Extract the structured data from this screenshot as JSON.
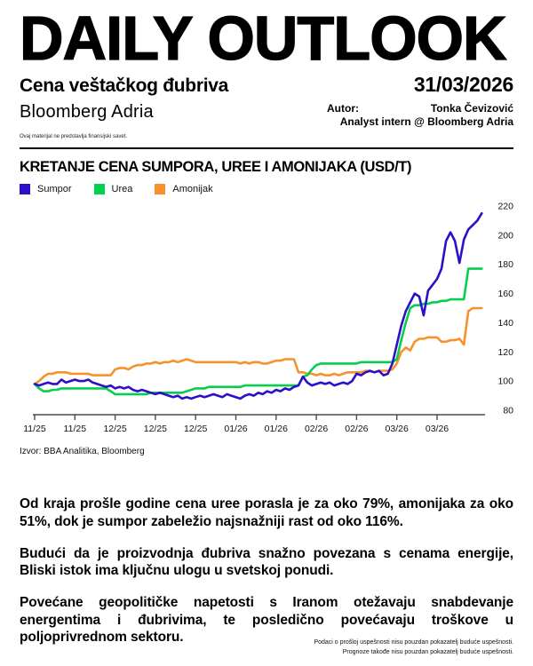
{
  "header": {
    "title": "DAILY OUTLOOK",
    "subtitle": "Cena veštačkog đubriva",
    "date": "31/03/2026",
    "brand": "Bloomberg Adria",
    "author_label": "Autor:",
    "author_name": "Tonka Čevizović",
    "author_role": "Analyst intern @ Bloomberg Adria",
    "disclaimer": "Ovaj materijal ne predstavlja finansijski savet."
  },
  "chart": {
    "title": "KRETANJE CENA SUMPORA, UREE I AMONIJAKA (USD/T)",
    "source": "Izvor: BBA Analitika, Bloomberg"
  },
  "chart_data": {
    "type": "line",
    "title": "KRETANJE CENA SUMPORA, UREE I AMONIJAKA (USD/T)",
    "xlabel": "",
    "ylabel": "USD/T",
    "grid": false,
    "legend_position": "top-left",
    "ylim": [
      80,
      220
    ],
    "y_ticks": [
      80,
      100,
      120,
      140,
      160,
      180,
      200,
      220
    ],
    "x_tick_labels": [
      "11/25",
      "11/25",
      "12/25",
      "12/25",
      "12/25",
      "01/26",
      "01/26",
      "02/26",
      "02/26",
      "03/26",
      "03/26"
    ],
    "x_tick_index_step": 9,
    "series": [
      {
        "name": "Sumpor",
        "color": "#2D0FC7",
        "values": [
          98,
          97,
          98,
          99,
          98,
          98,
          101,
          99,
          100,
          101,
          100,
          100,
          101,
          99,
          98,
          97,
          96,
          97,
          95,
          96,
          95,
          96,
          94,
          93,
          94,
          93,
          92,
          91,
          92,
          91,
          90,
          89,
          90,
          88,
          89,
          88,
          89,
          90,
          89,
          90,
          91,
          90,
          89,
          91,
          90,
          89,
          88,
          90,
          91,
          90,
          92,
          91,
          93,
          92,
          94,
          93,
          95,
          94,
          96,
          97,
          103,
          99,
          97,
          98,
          99,
          98,
          99,
          97,
          98,
          99,
          98,
          100,
          105,
          104,
          106,
          107,
          106,
          107,
          104,
          105,
          112,
          125,
          138,
          148,
          154,
          160,
          158,
          145,
          162,
          166,
          170,
          177,
          196,
          202,
          196,
          181,
          197,
          204,
          207,
          210,
          215
        ]
      },
      {
        "name": "Urea",
        "color": "#05CF4E",
        "values": [
          98,
          95,
          93,
          93,
          94,
          94,
          95,
          95,
          95,
          95,
          95,
          95,
          95,
          95,
          95,
          95,
          95,
          93,
          91,
          91,
          91,
          91,
          91,
          91,
          91,
          91,
          92,
          92,
          92,
          92,
          92,
          92,
          92,
          92,
          93,
          94,
          95,
          95,
          95,
          96,
          96,
          96,
          96,
          96,
          96,
          96,
          96,
          97,
          97,
          97,
          97,
          97,
          97,
          97,
          97,
          97,
          97,
          97,
          97,
          97,
          103,
          104,
          108,
          111,
          112,
          112,
          112,
          112,
          112,
          112,
          112,
          112,
          112,
          113,
          113,
          113,
          113,
          113,
          113,
          113,
          113,
          115,
          128,
          140,
          150,
          152,
          152,
          153,
          153,
          154,
          154,
          155,
          155,
          156,
          156,
          156,
          156,
          177,
          177,
          177,
          177
        ]
      },
      {
        "name": "Amonijak",
        "color": "#F8912B",
        "values": [
          98,
          100,
          103,
          105,
          105,
          106,
          106,
          106,
          105,
          105,
          105,
          105,
          105,
          104,
          104,
          104,
          104,
          104,
          108,
          109,
          109,
          108,
          110,
          111,
          111,
          112,
          112,
          113,
          112,
          113,
          113,
          114,
          113,
          114,
          115,
          114,
          113,
          113,
          113,
          113,
          113,
          113,
          113,
          113,
          113,
          113,
          112,
          113,
          112,
          113,
          113,
          112,
          112,
          113,
          114,
          114,
          115,
          115,
          115,
          106,
          106,
          105,
          105,
          104,
          105,
          104,
          104,
          105,
          104,
          105,
          106,
          106,
          106,
          106,
          107,
          107,
          106,
          107,
          107,
          107,
          108,
          112,
          120,
          123,
          121,
          127,
          129,
          129,
          130,
          130,
          130,
          127,
          127,
          128,
          128,
          129,
          125,
          148,
          150,
          150,
          150
        ]
      }
    ]
  },
  "body": {
    "paragraphs": [
      "Od kraja prošle godine cena uree porasla je za oko 79%, amonijaka za oko 51%, dok je sumpor zabeležio najsnažniji rast od oko 116%.",
      "Budući da je proizvodnja đubriva snažno povezana s cenama energije, Bliski istok ima ključnu ulogu u svetskoj ponudi.",
      "Povećane geopolitičke napetosti s Iranom otežavaju snabdevanje energentima i đubrivima, te posledično povećavaju troškove u poljoprivrednom sektoru."
    ]
  },
  "footer": {
    "lines": [
      "Podaci o prošloj uspešnosti nisu pouzdan pokazatelj buduće uspešnosti.",
      "Prognoze takođe nisu pouzdan pokazatelj buduće uspešnosti."
    ]
  }
}
